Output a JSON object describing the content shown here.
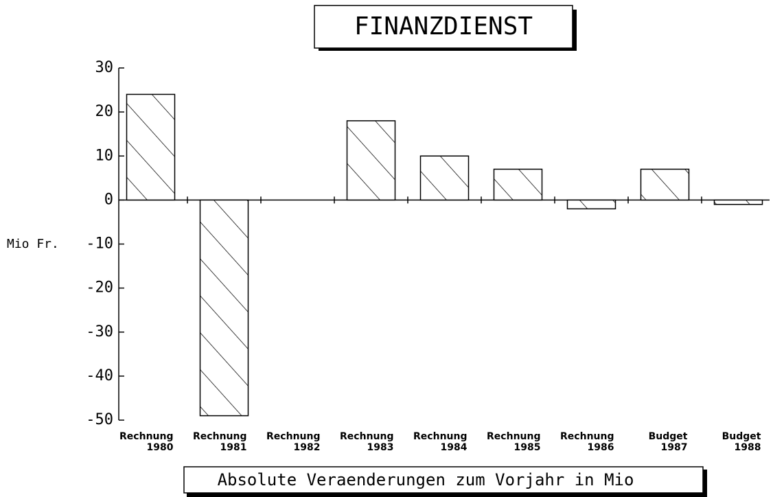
{
  "chart_data": {
    "type": "bar",
    "title": "FINANZDIENST",
    "subtitle": "Absolute Veraenderungen zum Vorjahr in Mio",
    "y_label": "Mio Fr.",
    "categories": [
      "Rechnung\n1980",
      "Rechnung\n1981",
      "Rechnung\n1982",
      "Rechnung\n1983",
      "Rechnung\n1984",
      "Rechnung\n1985",
      "Rechnung\n1986",
      "Budget\n1987",
      "Budget\n1988"
    ],
    "values": [
      24,
      -49,
      0,
      18,
      10,
      7,
      -2,
      7,
      -1
    ],
    "color": "#000000",
    "ylim": [
      -50,
      30
    ],
    "yticks": [
      -50,
      -40,
      -30,
      -20,
      -10,
      0,
      10,
      20,
      30
    ],
    "grid": false
  }
}
